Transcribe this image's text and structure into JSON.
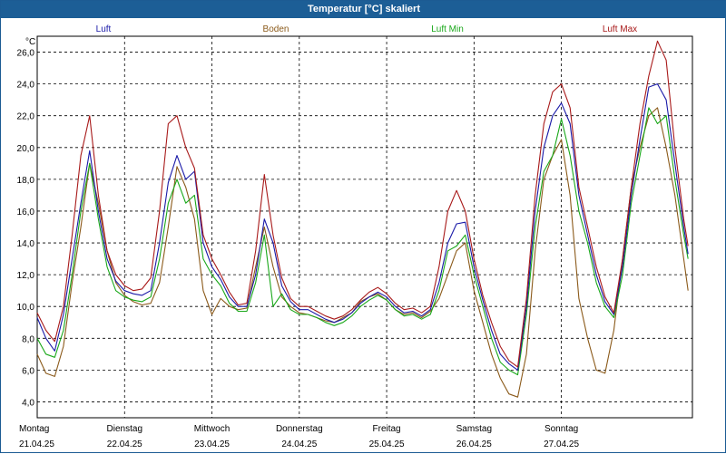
{
  "window": {
    "title": "Temperatur [°C] skaliert"
  },
  "colors": {
    "title_bar": "#1c5e96",
    "luft": "#1a1aa8",
    "boden": "#8b5a1a",
    "luft_min": "#1aa81a",
    "luft_max": "#a81a1a"
  },
  "chart_data": {
    "type": "line",
    "title": "Temperatur [°C] skaliert",
    "ylabel": "°C",
    "ylim": [
      3.0,
      27.0
    ],
    "yticks": [
      "4,0",
      "6,0",
      "8,0",
      "10,0",
      "12,0",
      "14,0",
      "16,0",
      "18,0",
      "20,0",
      "22,0",
      "24,0",
      "26,0"
    ],
    "ytick_values": [
      4,
      6,
      8,
      10,
      12,
      14,
      16,
      18,
      20,
      22,
      24,
      26
    ],
    "xlim": [
      0,
      7.5
    ],
    "x_ticks": [
      {
        "day": "Montag",
        "date": "21.04.25"
      },
      {
        "day": "Dienstag",
        "date": "22.04.25"
      },
      {
        "day": "Mittwoch",
        "date": "23.04.25"
      },
      {
        "day": "Donnerstag",
        "date": "24.04.25"
      },
      {
        "day": "Freitag",
        "date": "25.04.25"
      },
      {
        "day": "Samstag",
        "date": "26.04.25"
      },
      {
        "day": "Sonntag",
        "date": "27.04.25"
      }
    ],
    "grid": true,
    "legend_placement": "top",
    "x": [
      0,
      0.1,
      0.2,
      0.3,
      0.4,
      0.5,
      0.6,
      0.7,
      0.8,
      0.9,
      1.0,
      1.1,
      1.2,
      1.3,
      1.4,
      1.5,
      1.6,
      1.7,
      1.8,
      1.9,
      2.0,
      2.1,
      2.2,
      2.3,
      2.4,
      2.5,
      2.6,
      2.7,
      2.8,
      2.9,
      3.0,
      3.1,
      3.2,
      3.3,
      3.4,
      3.5,
      3.6,
      3.7,
      3.8,
      3.9,
      4.0,
      4.1,
      4.2,
      4.3,
      4.4,
      4.5,
      4.6,
      4.7,
      4.8,
      4.9,
      5.0,
      5.1,
      5.2,
      5.3,
      5.4,
      5.5,
      5.6,
      5.7,
      5.8,
      5.9,
      6.0,
      6.1,
      6.2,
      6.3,
      6.4,
      6.5,
      6.6,
      6.7,
      6.8,
      6.9,
      7.0,
      7.1,
      7.2,
      7.3,
      7.4,
      7.45
    ],
    "series": [
      {
        "name": "Luft",
        "color": "#1a1aa8",
        "values": [
          9.3,
          8.0,
          7.2,
          9.5,
          13.0,
          16.5,
          19.8,
          16.0,
          13.0,
          11.6,
          11.0,
          10.8,
          10.7,
          11.0,
          14.0,
          17.8,
          19.5,
          18.0,
          18.5,
          14.0,
          12.5,
          11.7,
          10.6,
          10.0,
          10.0,
          12.0,
          15.5,
          14.0,
          11.3,
          10.3,
          9.8,
          9.8,
          9.5,
          9.2,
          9.0,
          9.2,
          9.6,
          10.2,
          10.6,
          10.9,
          10.6,
          10.0,
          9.6,
          9.7,
          9.4,
          9.8,
          11.5,
          14.0,
          15.2,
          15.3,
          12.5,
          10.4,
          8.5,
          7.0,
          6.4,
          6.0,
          10.0,
          16.0,
          20.0,
          22.0,
          22.8,
          21.5,
          17.0,
          14.5,
          12.0,
          10.3,
          9.5,
          12.5,
          17.0,
          20.5,
          23.8,
          24.0,
          23.0,
          19.0,
          15.0,
          13.3
        ]
      },
      {
        "name": "Boden",
        "color": "#8b5a1a",
        "values": [
          7.0,
          5.8,
          5.6,
          7.5,
          11.5,
          15.0,
          19.0,
          16.5,
          13.5,
          11.5,
          10.7,
          10.3,
          10.1,
          10.2,
          11.5,
          15.0,
          18.8,
          17.5,
          15.5,
          11.0,
          9.5,
          10.5,
          10.0,
          9.8,
          9.9,
          12.5,
          15.0,
          12.5,
          10.6,
          10.0,
          9.6,
          9.5,
          9.3,
          9.1,
          9.0,
          9.3,
          9.6,
          10.3,
          10.6,
          10.8,
          10.4,
          9.8,
          9.5,
          9.6,
          9.3,
          9.7,
          10.5,
          12.0,
          13.5,
          14.0,
          11.0,
          9.0,
          7.0,
          5.5,
          4.5,
          4.3,
          7.0,
          13.5,
          18.0,
          19.5,
          20.5,
          17.0,
          10.5,
          8.0,
          6.0,
          5.8,
          8.5,
          13.0,
          17.5,
          20.0,
          22.0,
          22.5,
          20.0,
          17.0,
          13.0,
          11.0
        ]
      },
      {
        "name": "Luft Min",
        "color": "#1aa81a",
        "values": [
          8.0,
          7.0,
          6.8,
          8.5,
          12.0,
          16.0,
          19.0,
          15.5,
          12.5,
          11.0,
          10.6,
          10.4,
          10.3,
          10.6,
          13.0,
          16.5,
          18.0,
          16.5,
          17.0,
          13.0,
          12.0,
          11.3,
          10.2,
          9.7,
          9.7,
          11.5,
          14.5,
          10.0,
          10.8,
          9.8,
          9.5,
          9.5,
          9.3,
          9.0,
          8.8,
          9.0,
          9.4,
          10.0,
          10.4,
          10.7,
          10.4,
          9.8,
          9.4,
          9.5,
          9.2,
          9.5,
          11.0,
          13.5,
          13.8,
          14.5,
          12.0,
          10.0,
          8.0,
          6.5,
          6.0,
          5.7,
          9.5,
          15.0,
          18.5,
          19.5,
          21.8,
          19.5,
          16.0,
          14.0,
          11.5,
          10.0,
          9.3,
          12.0,
          16.5,
          19.5,
          22.5,
          21.5,
          22.0,
          18.0,
          14.5,
          13.0
        ]
      },
      {
        "name": "Luft Max",
        "color": "#a81a1a",
        "values": [
          9.6,
          8.5,
          7.8,
          10.0,
          14.5,
          19.5,
          22.0,
          17.0,
          13.5,
          12.0,
          11.3,
          11.0,
          11.1,
          11.8,
          16.0,
          21.5,
          22.0,
          20.0,
          18.7,
          14.5,
          13.0,
          12.0,
          10.9,
          10.1,
          10.2,
          13.5,
          18.3,
          14.5,
          11.8,
          10.5,
          10.0,
          10.0,
          9.7,
          9.4,
          9.2,
          9.4,
          9.8,
          10.4,
          10.9,
          11.2,
          10.8,
          10.2,
          9.8,
          9.9,
          9.6,
          10.0,
          12.5,
          16.0,
          17.3,
          16.0,
          13.0,
          10.7,
          9.0,
          7.5,
          6.6,
          6.2,
          10.5,
          17.0,
          21.5,
          23.5,
          24.0,
          22.5,
          17.5,
          15.0,
          12.5,
          10.6,
          9.6,
          13.0,
          17.5,
          21.5,
          24.5,
          26.7,
          25.5,
          20.0,
          15.5,
          13.8
        ]
      }
    ]
  }
}
